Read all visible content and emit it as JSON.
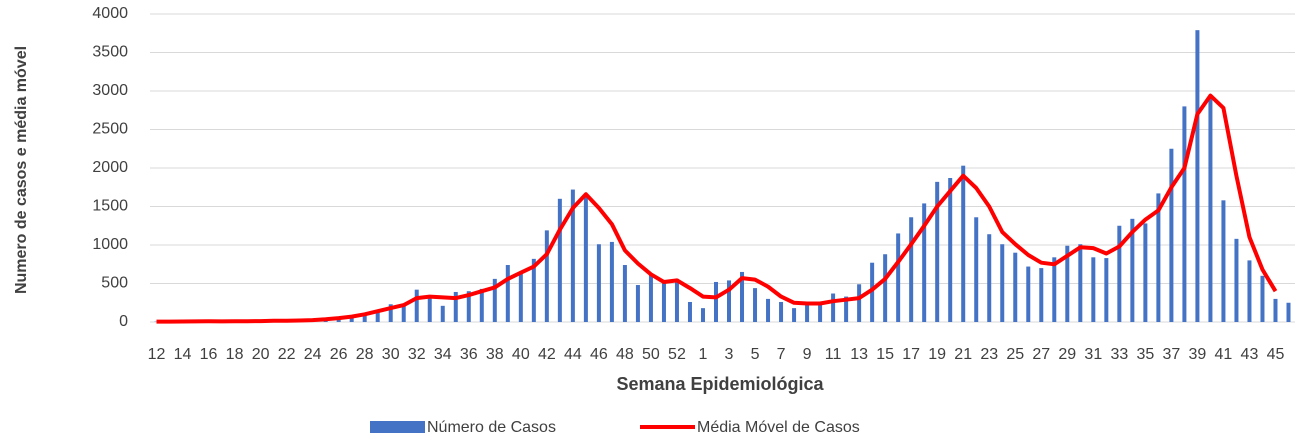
{
  "chart_data": {
    "type": "bar_line",
    "x_label": "Semana Epidemiológica",
    "y_label": "Numero de casos e média móvel",
    "categories": [
      "12",
      null,
      "14",
      null,
      "16",
      null,
      "18",
      null,
      "20",
      null,
      "22",
      null,
      "24",
      null,
      "26",
      null,
      "28",
      null,
      "30",
      null,
      "32",
      null,
      "34",
      null,
      "36",
      null,
      "38",
      null,
      "40",
      null,
      "42",
      null,
      "44",
      null,
      "46",
      null,
      "48",
      null,
      "50",
      null,
      "52",
      null,
      "1",
      null,
      "3",
      null,
      "5",
      null,
      "7",
      null,
      "9",
      null,
      "11",
      null,
      "13",
      null,
      "15",
      null,
      "17",
      null,
      "19",
      null,
      "21",
      null,
      "23",
      null,
      "25",
      null,
      "27",
      null,
      "29",
      null,
      "31",
      null,
      "33",
      null,
      "35",
      null,
      "37",
      null,
      "39",
      null,
      "41",
      null,
      "43",
      null,
      "45",
      null
    ],
    "series": [
      {
        "name": "Número de Casos",
        "color": "#4472c4",
        "kind": "bar",
        "values": [
          5,
          5,
          10,
          10,
          10,
          5,
          10,
          10,
          15,
          20,
          15,
          30,
          35,
          40,
          60,
          80,
          100,
          150,
          230,
          220,
          420,
          310,
          210,
          390,
          400,
          430,
          560,
          740,
          650,
          820,
          1190,
          1600,
          1720,
          1640,
          1010,
          1040,
          740,
          480,
          620,
          500,
          560,
          260,
          180,
          520,
          540,
          650,
          440,
          300,
          260,
          180,
          230,
          230,
          370,
          330,
          490,
          770,
          880,
          1150,
          1360,
          1540,
          1820,
          1870,
          2030,
          1360,
          1140,
          1010,
          900,
          720,
          700,
          840,
          990,
          1010,
          840,
          830,
          1250,
          1340,
          1280,
          1670,
          2250,
          2800,
          3790,
          2900,
          1580,
          1080,
          800,
          600,
          300,
          250
        ]
      },
      {
        "name": "Média Móvel de Casos",
        "color": "#ff0000",
        "kind": "line",
        "values": [
          5,
          5,
          7,
          8,
          9,
          8,
          9,
          10,
          12,
          15,
          15,
          20,
          25,
          35,
          50,
          70,
          100,
          140,
          180,
          220,
          310,
          330,
          320,
          310,
          350,
          400,
          450,
          560,
          640,
          720,
          880,
          1200,
          1480,
          1660,
          1480,
          1270,
          930,
          760,
          620,
          520,
          540,
          440,
          330,
          320,
          420,
          570,
          550,
          460,
          330,
          250,
          240,
          240,
          270,
          290,
          310,
          420,
          560,
          780,
          1010,
          1250,
          1500,
          1700,
          1900,
          1740,
          1500,
          1170,
          1010,
          870,
          770,
          750,
          860,
          970,
          960,
          890,
          980,
          1170,
          1330,
          1450,
          1750,
          2000,
          2700,
          2940,
          2780,
          1900,
          1100,
          680,
          400,
          null
        ]
      }
    ],
    "ylim": [
      0,
      4000
    ],
    "yticks": [
      0,
      500,
      1000,
      1500,
      2000,
      2500,
      3000,
      3500,
      4000
    ],
    "grid": true
  }
}
